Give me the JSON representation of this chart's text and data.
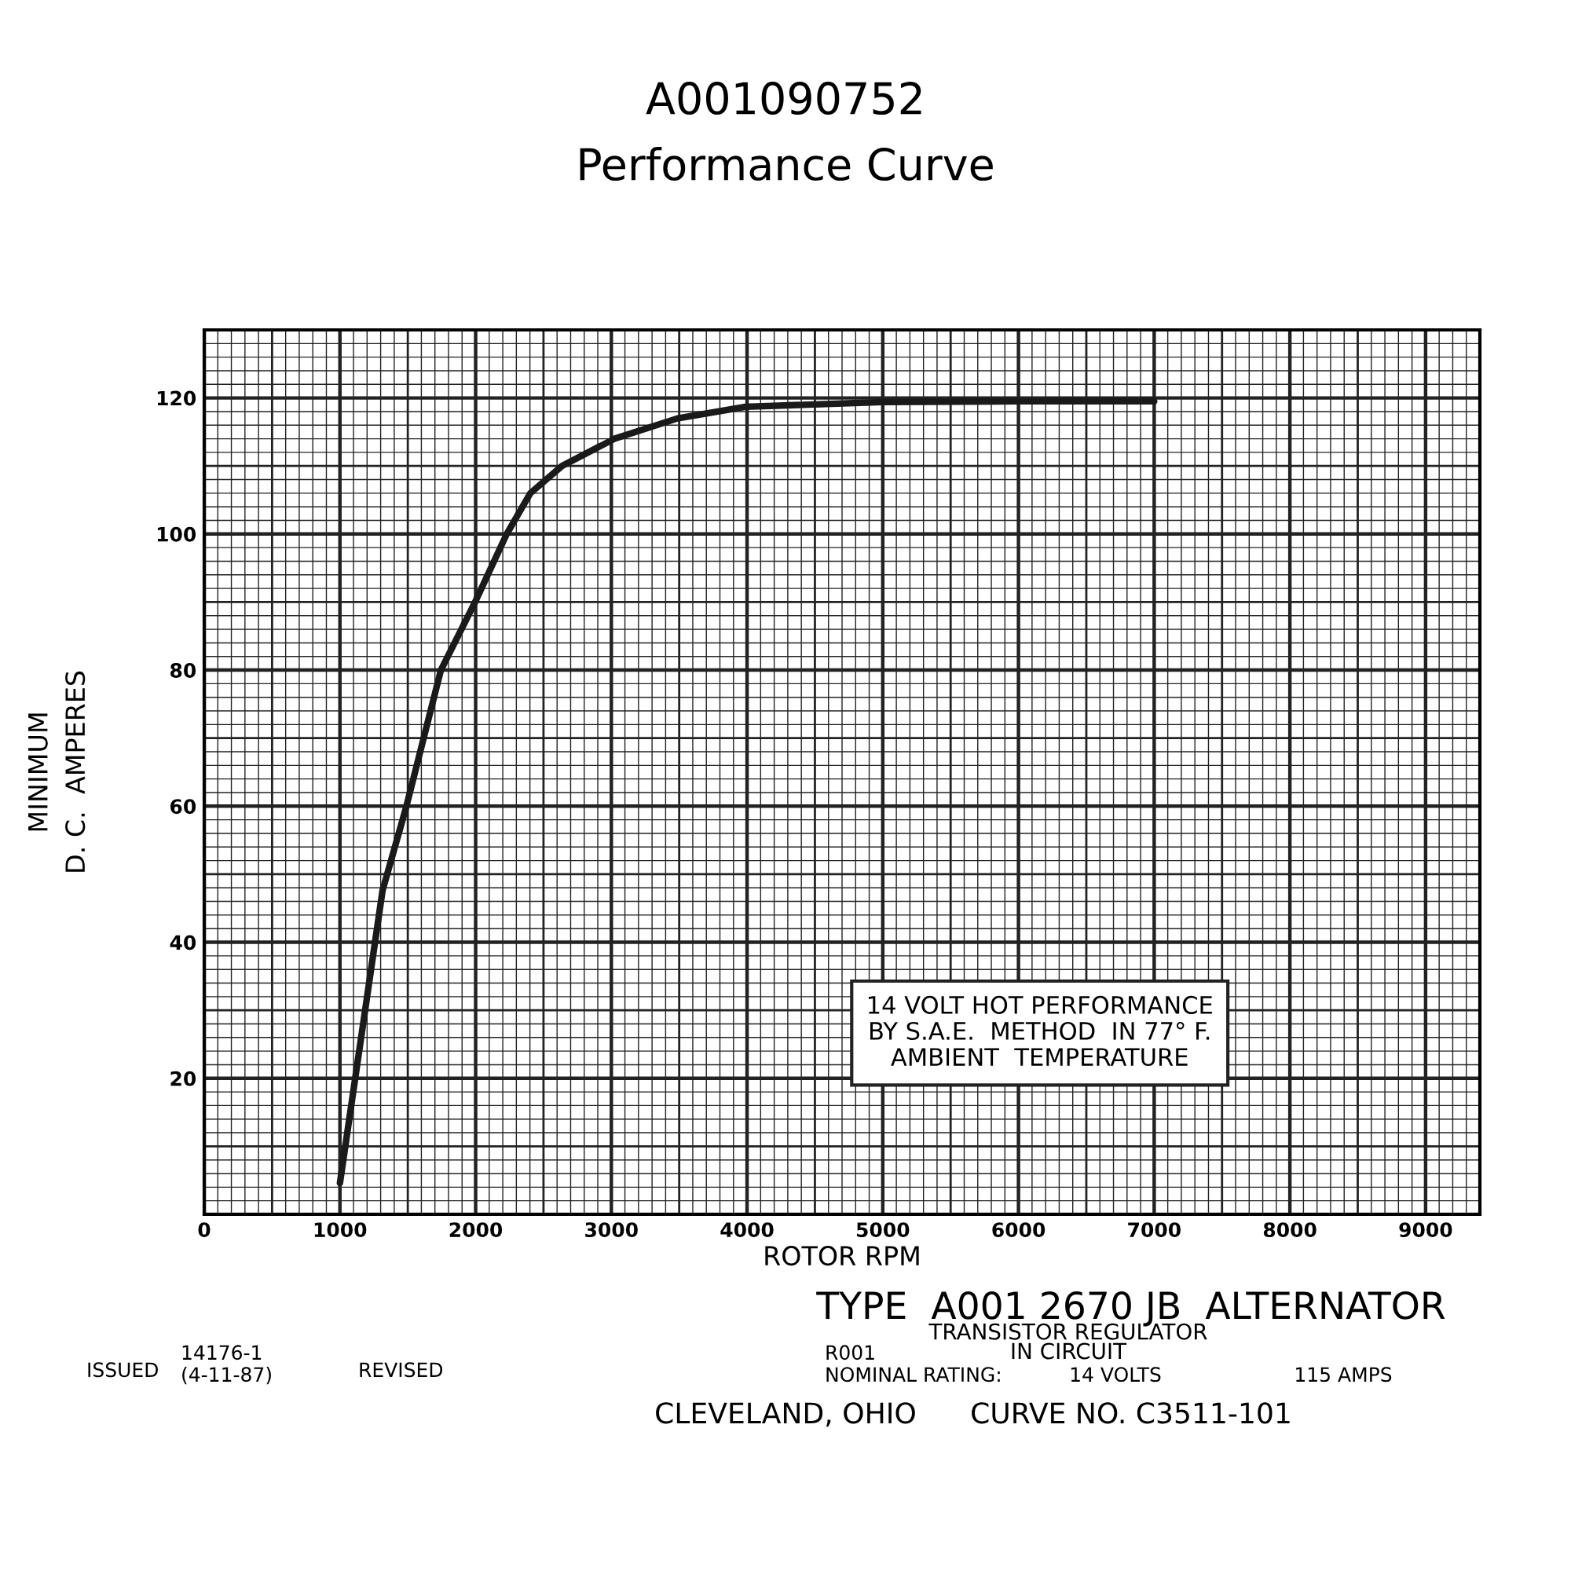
{
  "chart_data": {
    "type": "line",
    "title": "A001090752",
    "subtitle": "Performance Curve",
    "xlabel": "ROTOR RPM",
    "ylabel": "MINIMUM\nD. C.  AMPERES",
    "x": [
      1000,
      1314,
      1490,
      1744,
      1996,
      2229,
      2403,
      2636,
      3023,
      3488,
      3988,
      5000,
      6000,
      7000
    ],
    "series": [
      {
        "color": "#1a1a1a",
        "values": [
          4.6,
          47.6,
          60,
          80,
          90,
          100,
          106,
          110,
          114,
          117,
          118.7,
          119.4,
          119.5,
          119.5
        ]
      }
    ],
    "xlim": [
      0,
      9400
    ],
    "ylim": [
      0,
      130
    ],
    "xticks": [
      0,
      1000,
      2000,
      3000,
      4000,
      5000,
      6000,
      7000,
      8000,
      9000
    ],
    "yticks": [
      20,
      40,
      60,
      80,
      100,
      120
    ],
    "grid": true,
    "marker": "none",
    "line_style": "solid",
    "legend": false,
    "annotations": [
      "14 VOLT HOT PERFORMANCE\nBY S.A.E.  METHOD  IN 77° F.\nAMBIENT  TEMPERATURE",
      "TYPE  A001 2670 JB  ALTERNATOR",
      "TRANSISTOR REGULATOR\nIN CIRCUIT",
      "R001",
      "NOMINAL RATING:",
      "14 VOLTS",
      "115 AMPS",
      "ISSUED",
      "14176-1\n(4-11-87)",
      "REVISED",
      "CLEVELAND, OHIO",
      "CURVE NO. C3511-101"
    ]
  }
}
